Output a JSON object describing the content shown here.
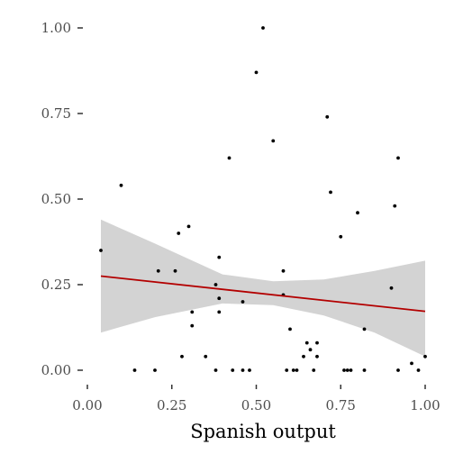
{
  "chart_data": {
    "type": "scatter",
    "title": "",
    "xlabel": "Spanish output",
    "ylabel": "",
    "xlim": [
      0,
      1
    ],
    "ylim": [
      0,
      1
    ],
    "grid": false,
    "x_ticks": [
      "0.00",
      "0.25",
      "0.50",
      "0.75",
      "1.00"
    ],
    "y_ticks": [
      "0.00",
      "0.25",
      "0.50",
      "0.75",
      "1.00"
    ],
    "points": [
      {
        "x": 0.04,
        "y": 0.35
      },
      {
        "x": 0.1,
        "y": 0.54
      },
      {
        "x": 0.14,
        "y": 0.0
      },
      {
        "x": 0.2,
        "y": 0.0
      },
      {
        "x": 0.21,
        "y": 0.29
      },
      {
        "x": 0.26,
        "y": 0.29
      },
      {
        "x": 0.27,
        "y": 0.4
      },
      {
        "x": 0.28,
        "y": 0.04
      },
      {
        "x": 0.3,
        "y": 0.42
      },
      {
        "x": 0.31,
        "y": 0.17
      },
      {
        "x": 0.31,
        "y": 0.13
      },
      {
        "x": 0.35,
        "y": 0.04
      },
      {
        "x": 0.38,
        "y": 0.25
      },
      {
        "x": 0.38,
        "y": 0.0
      },
      {
        "x": 0.39,
        "y": 0.33
      },
      {
        "x": 0.39,
        "y": 0.21
      },
      {
        "x": 0.39,
        "y": 0.17
      },
      {
        "x": 0.42,
        "y": 0.62
      },
      {
        "x": 0.43,
        "y": 0.0
      },
      {
        "x": 0.46,
        "y": 0.2
      },
      {
        "x": 0.46,
        "y": 0.0
      },
      {
        "x": 0.48,
        "y": 0.0
      },
      {
        "x": 0.5,
        "y": 0.87
      },
      {
        "x": 0.52,
        "y": 1.0
      },
      {
        "x": 0.55,
        "y": 0.67
      },
      {
        "x": 0.58,
        "y": 0.29
      },
      {
        "x": 0.58,
        "y": 0.22
      },
      {
        "x": 0.59,
        "y": 0.0
      },
      {
        "x": 0.6,
        "y": 0.12
      },
      {
        "x": 0.61,
        "y": 0.0
      },
      {
        "x": 0.62,
        "y": 0.0
      },
      {
        "x": 0.64,
        "y": 0.04
      },
      {
        "x": 0.65,
        "y": 0.08
      },
      {
        "x": 0.66,
        "y": 0.06
      },
      {
        "x": 0.67,
        "y": 0.0
      },
      {
        "x": 0.68,
        "y": 0.08
      },
      {
        "x": 0.68,
        "y": 0.04
      },
      {
        "x": 0.71,
        "y": 0.74
      },
      {
        "x": 0.72,
        "y": 0.52
      },
      {
        "x": 0.75,
        "y": 0.39
      },
      {
        "x": 0.76,
        "y": 0.0
      },
      {
        "x": 0.77,
        "y": 0.0
      },
      {
        "x": 0.78,
        "y": 0.0
      },
      {
        "x": 0.8,
        "y": 0.46
      },
      {
        "x": 0.82,
        "y": 0.12
      },
      {
        "x": 0.82,
        "y": 0.0
      },
      {
        "x": 0.9,
        "y": 0.24
      },
      {
        "x": 0.91,
        "y": 0.48
      },
      {
        "x": 0.92,
        "y": 0.0
      },
      {
        "x": 0.92,
        "y": 0.62
      },
      {
        "x": 0.96,
        "y": 0.02
      },
      {
        "x": 0.98,
        "y": 0.0
      },
      {
        "x": 1.0,
        "y": 0.04
      }
    ],
    "fit_line": {
      "x": [
        0.04,
        1.0
      ],
      "y": [
        0.275,
        0.172
      ]
    },
    "confidence_band": {
      "x": [
        0.04,
        0.2,
        0.4,
        0.55,
        0.7,
        0.85,
        1.0
      ],
      "lower": [
        0.11,
        0.155,
        0.195,
        0.19,
        0.16,
        0.11,
        0.04
      ],
      "upper": [
        0.44,
        0.37,
        0.28,
        0.26,
        0.265,
        0.29,
        0.32
      ]
    },
    "colors": {
      "point": "#000000",
      "fit_line": "#b30000",
      "band": "#d3d3d3",
      "tick": "#333333",
      "tick_label": "#4d4d4d"
    }
  }
}
